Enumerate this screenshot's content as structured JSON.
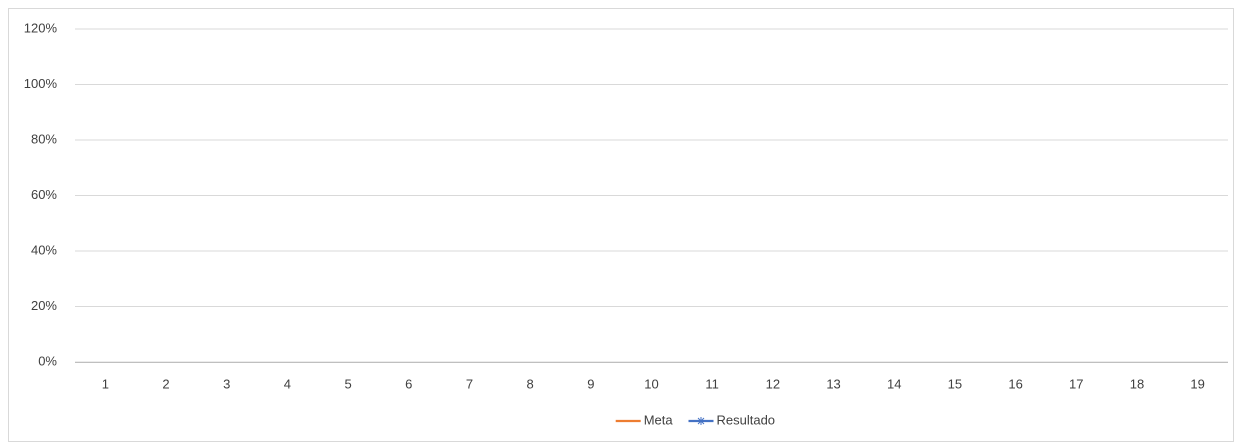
{
  "chart_data": {
    "type": "line",
    "categories": [
      "1",
      "2",
      "3",
      "4",
      "5",
      "6",
      "7",
      "8",
      "9",
      "10",
      "11",
      "12",
      "13",
      "14",
      "15",
      "16",
      "17",
      "18",
      "19"
    ],
    "series": [
      {
        "name": "Meta",
        "color": "#ed7d31",
        "marker": "none",
        "values": [
          null,
          null,
          null,
          null,
          null,
          null,
          null,
          null,
          null,
          null,
          null,
          null,
          null,
          null,
          null,
          null,
          null,
          null,
          null
        ]
      },
      {
        "name": "Resultado",
        "color": "#4472c4",
        "marker": "star",
        "values": [
          null,
          null,
          null,
          null,
          null,
          null,
          null,
          null,
          null,
          null,
          null,
          null,
          null,
          null,
          null,
          null,
          null,
          null,
          null
        ]
      }
    ],
    "ylim": [
      0,
      120
    ],
    "yticks": [
      {
        "value": 0,
        "label": "0%"
      },
      {
        "value": 20,
        "label": "20%"
      },
      {
        "value": 40,
        "label": "40%"
      },
      {
        "value": 60,
        "label": "60%"
      },
      {
        "value": 80,
        "label": "80%"
      },
      {
        "value": 100,
        "label": "100%"
      },
      {
        "value": 120,
        "label": "120%"
      }
    ],
    "grid": true,
    "legend": "bottom"
  }
}
